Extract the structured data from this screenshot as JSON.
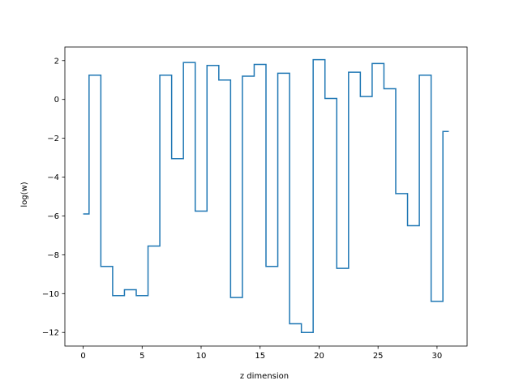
{
  "chart_data": {
    "type": "line",
    "drawstyle": "steps-mid",
    "title": "",
    "xlabel": "z dimension",
    "ylabel": "log(w)",
    "xlim": [
      -1.55,
      32.55
    ],
    "ylim": [
      -12.7,
      2.7
    ],
    "xticks": [
      0,
      5,
      10,
      15,
      20,
      25,
      30
    ],
    "xtick_labels": [
      "0",
      "5",
      "10",
      "15",
      "20",
      "25",
      "30"
    ],
    "yticks": [
      -12,
      -10,
      -8,
      -6,
      -4,
      -2,
      0,
      2
    ],
    "ytick_labels": [
      "−12",
      "−10",
      "−8",
      "−6",
      "−4",
      "−2",
      "0",
      "2"
    ],
    "grid": false,
    "series": [
      {
        "color": "#1f77b4",
        "x": [
          0,
          1,
          2,
          3,
          4,
          5,
          6,
          7,
          8,
          9,
          10,
          11,
          12,
          13,
          14,
          15,
          16,
          17,
          18,
          19,
          20,
          21,
          22,
          23,
          24,
          25,
          26,
          27,
          28,
          29,
          30,
          31
        ],
        "y": [
          -5.9,
          1.25,
          -8.6,
          -10.1,
          -9.8,
          -10.1,
          -7.55,
          1.25,
          -3.05,
          1.9,
          -5.75,
          1.75,
          1.0,
          -10.2,
          1.2,
          1.8,
          -8.6,
          1.35,
          -11.55,
          -12.0,
          2.05,
          0.05,
          -8.7,
          1.4,
          0.15,
          1.85,
          0.55,
          -4.85,
          -6.5,
          1.25,
          -10.4,
          -1.65
        ]
      }
    ]
  }
}
